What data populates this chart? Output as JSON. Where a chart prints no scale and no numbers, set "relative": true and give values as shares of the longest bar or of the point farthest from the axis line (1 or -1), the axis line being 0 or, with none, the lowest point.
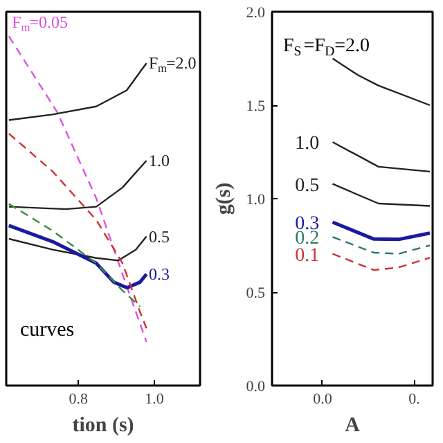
{
  "chart_data": [
    {
      "type": "line",
      "relative": true,
      "xlabel": "tion (s)",
      "xlim": [
        0.61,
        1.12
      ],
      "xticks": [
        0.8,
        {
          "value": 1.0,
          "label": "1.0"
        }
      ],
      "grid": false,
      "annotations": [
        "curves"
      ],
      "series": [
        {
          "name": "F$_{m}$=0.05",
          "color": "#e050e0",
          "line_style": "dashed",
          "x": [
            0.617,
            0.744,
            0.847,
            0.916,
            0.951,
            0.979
          ],
          "values": [
            1.0,
            0.783,
            0.536,
            0.319,
            0.211,
            0.125
          ]
        },
        {
          "name": "F$_{m}$=2.0",
          "color": "#222222",
          "line_style": "solid",
          "x": [
            0.617,
            0.732,
            0.847,
            0.927,
            0.979
          ],
          "values": [
            0.76,
            0.776,
            0.799,
            0.845,
            0.923
          ]
        },
        {
          "name": "1.0",
          "color": "#222222",
          "line_style": "solid",
          "x": [
            0.617,
            0.767,
            0.847,
            0.916,
            0.979
          ],
          "values": [
            0.512,
            0.505,
            0.512,
            0.567,
            0.644
          ]
        },
        {
          "name": "0.5",
          "color": "#222222",
          "line_style": "solid",
          "x": [
            0.617,
            0.732,
            0.847,
            0.905,
            0.951,
            0.979
          ],
          "values": [
            0.42,
            0.389,
            0.365,
            0.358,
            0.389,
            0.427
          ]
        },
        {
          "name": "0.3",
          "color": "#1a1aa0",
          "line_style": "solid",
          "x": [
            0.617,
            0.732,
            0.847,
            0.893,
            0.928,
            0.962,
            0.979
          ],
          "values": [
            0.458,
            0.412,
            0.35,
            0.296,
            0.28,
            0.296,
            0.319
          ]
        },
        {
          "color": "#cc3333",
          "line_style": "dashed",
          "x": [
            0.617,
            0.732,
            0.847,
            0.916,
            0.962,
            0.979
          ],
          "values": [
            0.721,
            0.613,
            0.474,
            0.35,
            0.211,
            0.164
          ]
        },
        {
          "color": "#3a8a3a",
          "line_style": "dashed",
          "x": [
            0.617,
            0.732,
            0.847,
            0.916,
            0.962
          ],
          "values": [
            0.52,
            0.443,
            0.35,
            0.272,
            0.226
          ]
        }
      ]
    },
    {
      "type": "line",
      "xlabel": "A",
      "ylabel": "g(s)",
      "xlim": [
        -0.055,
        0.12
      ],
      "xticks": [
        {
          "value": 0.0,
          "label": "0.0"
        },
        {
          "value": 0.1,
          "label": "0."
        }
      ],
      "ylim": [
        0,
        2
      ],
      "yticks": [
        {
          "value": 0.0,
          "label": "0.0"
        },
        0.5,
        {
          "value": 1.0,
          "label": "1.0"
        },
        1.5,
        {
          "value": 2.0,
          "label": "2.0"
        }
      ],
      "grid": false,
      "annotations": [
        "F$_{S}$=F$_{D}$=2.0"
      ],
      "series": [
        {
          "color": "#222222",
          "line_style": "solid",
          "x": [
            0.011,
            0.039,
            0.061,
            0.117
          ],
          "values": [
            1.75,
            1.66,
            1.605,
            1.5
          ]
        },
        {
          "name": "1.0",
          "color": "#222222",
          "line_style": "solid",
          "x": [
            0.011,
            0.061,
            0.117
          ],
          "values": [
            1.303,
            1.171,
            1.145
          ]
        },
        {
          "name": "0.5",
          "color": "#222222",
          "line_style": "solid",
          "x": [
            0.011,
            0.061,
            0.117
          ],
          "values": [
            1.079,
            0.974,
            0.961
          ]
        },
        {
          "name": "0.3",
          "color": "#1a1aa0",
          "line_style": "solid",
          "x": [
            0.011,
            0.056,
            0.083,
            0.117
          ],
          "values": [
            0.874,
            0.784,
            0.782,
            0.816
          ]
        },
        {
          "name": "0.2",
          "color": "#2a7a6a",
          "line_style": "dashed",
          "x": [
            0.011,
            0.056,
            0.083,
            0.117
          ],
          "values": [
            0.795,
            0.711,
            0.705,
            0.75
          ]
        },
        {
          "name": "0.1",
          "color": "#cc3333",
          "line_style": "dashed",
          "x": [
            0.011,
            0.056,
            0.083,
            0.117
          ],
          "values": [
            0.705,
            0.618,
            0.632,
            0.684
          ]
        }
      ]
    }
  ]
}
